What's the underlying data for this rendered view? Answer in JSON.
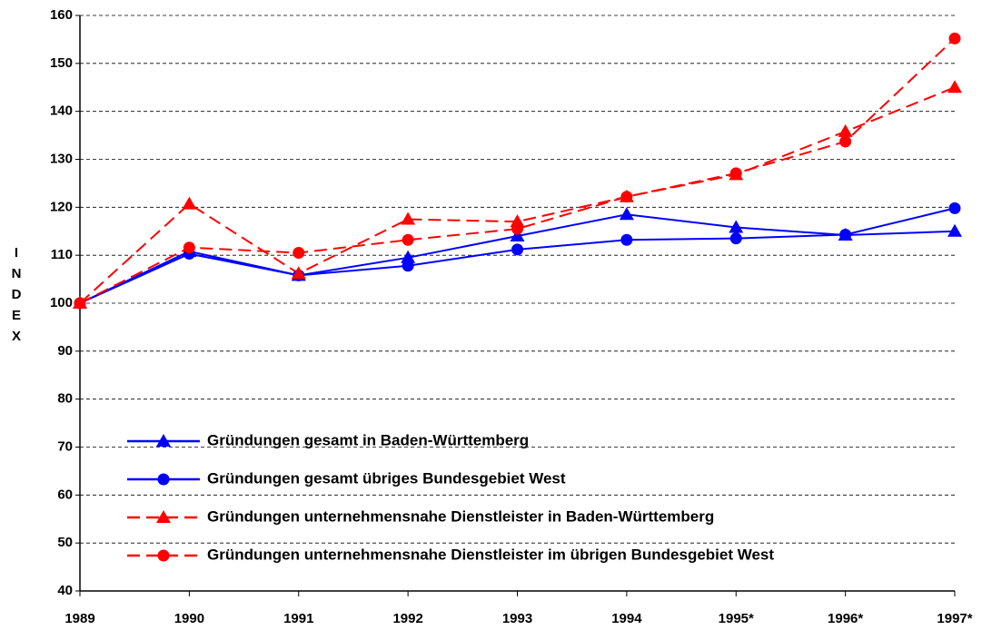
{
  "chart_data": {
    "type": "line",
    "y_label": "INDEX",
    "categories": [
      "1989",
      "1990",
      "1991",
      "1992",
      "1993",
      "1994",
      "1995*",
      "1996*",
      "1997*"
    ],
    "ylim": [
      40,
      160
    ],
    "yticks": [
      40,
      50,
      60,
      70,
      80,
      90,
      100,
      110,
      120,
      130,
      140,
      150,
      160
    ],
    "grid": true,
    "legend": "lower left",
    "series": [
      {
        "name": "Gründungen gesamt in Baden-Württemberg",
        "color": "#0000ff",
        "line_style": "solid",
        "marker": "triangle",
        "values": [
          100,
          110.8,
          105.8,
          109.5,
          114,
          118.5,
          115.8,
          114.2,
          115
        ]
      },
      {
        "name": "Gründungen gesamt übriges Bundesgebiet West",
        "color": "#0000ff",
        "line_style": "solid",
        "marker": "circle",
        "values": [
          100,
          110.3,
          105.8,
          107.8,
          111.2,
          113.2,
          113.5,
          114.3,
          119.8
        ]
      },
      {
        "name": "Gründungen unternehmensnahe Dienstleister in Baden-Württemberg",
        "color": "#ff0000",
        "line_style": "dashed",
        "marker": "triangle",
        "values": [
          100,
          120.7,
          106.2,
          117.5,
          117,
          122.2,
          126.8,
          135.8,
          145
        ]
      },
      {
        "name": "Gründungen unternehmensnahe Dienstleister im übrigen Bundesgebiet West",
        "color": "#ff0000",
        "line_style": "dashed",
        "marker": "circle",
        "values": [
          100,
          111.6,
          110.5,
          113.2,
          115.5,
          122.2,
          127.1,
          133.7,
          155.2
        ]
      }
    ]
  }
}
